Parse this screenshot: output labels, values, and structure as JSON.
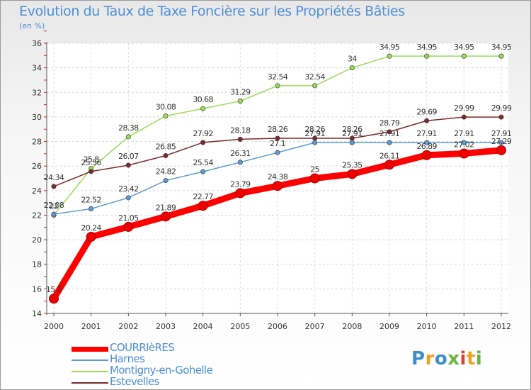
{
  "title": "Evolution du Taux de Taxe Foncière sur les Propriétés Bâties",
  "unit_label": "(en %)",
  "logo_letters": [
    {
      "ch": "P",
      "color": "#3a8fd0"
    },
    {
      "ch": "r",
      "color": "#f0a020"
    },
    {
      "ch": "o",
      "color": "#3a8fd0"
    },
    {
      "ch": "x",
      "color": "#6db33f"
    },
    {
      "ch": "i",
      "color": "#e0402a"
    },
    {
      "ch": "t",
      "color": "#f0a020"
    },
    {
      "ch": "i",
      "color": "#6db33f"
    }
  ],
  "chart_data": {
    "type": "line",
    "x": [
      "2000",
      "2001",
      "2002",
      "2003",
      "2004",
      "2005",
      "2006",
      "2007",
      "2008",
      "2009",
      "2010",
      "2011",
      "2012"
    ],
    "ylim": [
      14,
      36
    ],
    "yticks": [
      14,
      16,
      18,
      20,
      22,
      24,
      26,
      28,
      30,
      32,
      34,
      36
    ],
    "grid": true,
    "legend_position": "bottom-left",
    "series": [
      {
        "name": "COURRIèRES",
        "color": "#ff0000",
        "values": [
          15.2,
          20.24,
          21.05,
          21.89,
          22.77,
          23.79,
          24.38,
          25,
          25.35,
          26.11,
          26.89,
          27.02,
          27.29
        ],
        "labels": [
          "15.2",
          "20.24",
          "21.05",
          "21.89",
          "22.77",
          "23.79",
          "24.38",
          "25",
          "25.35",
          "26.11",
          "26.89",
          "27.02",
          "27.29"
        ]
      },
      {
        "name": "Harnes",
        "color": "#5b9bd5",
        "values": [
          22.08,
          22.52,
          23.42,
          24.82,
          25.54,
          26.31,
          27.1,
          27.91,
          27.91,
          27.91,
          27.91,
          27.91,
          27.91
        ],
        "labels": [
          "22.08",
          "22.52",
          "23.42",
          "24.82",
          "25.54",
          "26.31",
          "27.1",
          "27.91",
          "27.91",
          "27.91",
          "27.91",
          "27.91",
          "27.91"
        ]
      },
      {
        "name": "Montigny-en-Gohelle",
        "color": "#99dd55",
        "values": [
          22,
          25.8,
          28.38,
          30.08,
          30.68,
          31.29,
          32.54,
          32.54,
          34,
          34.95,
          34.95,
          34.95,
          34.95
        ],
        "labels": [
          "22",
          "25.8",
          "28.38",
          "30.08",
          "30.68",
          "31.29",
          "32.54",
          "32.54",
          "34",
          "34.95",
          "34.95",
          "34.95",
          "34.95"
        ]
      },
      {
        "name": "Estevelles",
        "color": "#7a2a2a",
        "values": [
          24.34,
          25.56,
          26.07,
          26.85,
          27.92,
          28.18,
          28.26,
          28.26,
          28.26,
          28.79,
          29.69,
          29.99,
          29.99
        ],
        "labels": [
          "24.34",
          "25.56",
          "26.07",
          "26.85",
          "27.92",
          "28.18",
          "28.26",
          "28.26",
          "28.26",
          "28.79",
          "29.69",
          "29.99",
          "29.99"
        ]
      }
    ]
  }
}
